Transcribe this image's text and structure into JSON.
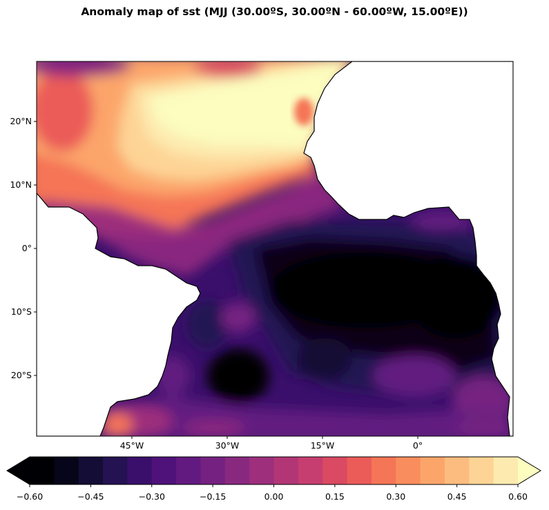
{
  "title": "Anomaly map of sst (MJJ (30.00ºS, 30.00ºN - 60.00ºW, 15.00ºE))",
  "map": {
    "extent": {
      "lon_min": -60,
      "lon_max": 15,
      "lat_min": -30,
      "lat_max": 30
    },
    "x_ticks": [
      "45°W",
      "30°W",
      "15°W",
      "0°"
    ],
    "y_ticks": [
      "20°N",
      "10°N",
      "0°",
      "10°S",
      "20°S"
    ],
    "colormap": "magma",
    "land_color": "#ffffff",
    "coastline_color": "#000000"
  },
  "colorbar": {
    "min": -0.6,
    "max": 0.6,
    "step": 0.05,
    "extend": "both",
    "tick_labels": [
      "−0.60",
      "−0.45",
      "−0.30",
      "−0.15",
      "0.00",
      "0.15",
      "0.30",
      "0.45",
      "0.60"
    ],
    "colors": [
      "#000004",
      "#070519",
      "#140e36",
      "#241253",
      "#3a0f6b",
      "#4f127b",
      "#621a80",
      "#752181",
      "#89287f",
      "#9d2f7c",
      "#b23676",
      "#c63e70",
      "#da4a62",
      "#eb5c59",
      "#f57557",
      "#fa8d5d",
      "#fca56b",
      "#fdbc7f",
      "#fdd495",
      "#fdeaaf",
      "#fcfdbf"
    ]
  }
}
